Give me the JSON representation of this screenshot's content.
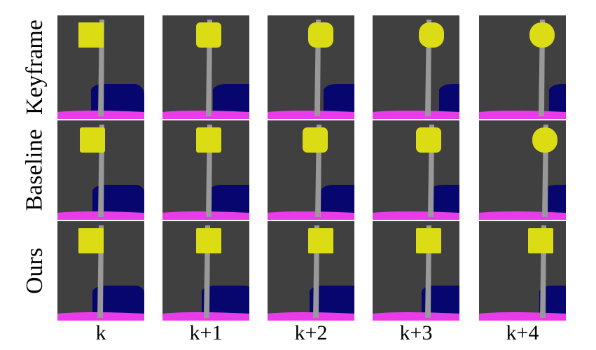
{
  "figure": {
    "rows": [
      {
        "label": "Keyframe",
        "key": "keyframe"
      },
      {
        "label": "Baseline",
        "key": "baseline"
      },
      {
        "label": "Ours",
        "key": "ours"
      }
    ],
    "columns": [
      {
        "label": "k"
      },
      {
        "label": "k+1"
      },
      {
        "label": "k+2"
      },
      {
        "label": "k+3"
      },
      {
        "label": "k+4"
      }
    ],
    "segmentation_colors": {
      "background": "#404040",
      "sign": "#dcdc14",
      "pole": "#999999",
      "car": "#06066e",
      "road_marking": "#e83ce8"
    },
    "icons": [
      "segmentation-map"
    ]
  }
}
